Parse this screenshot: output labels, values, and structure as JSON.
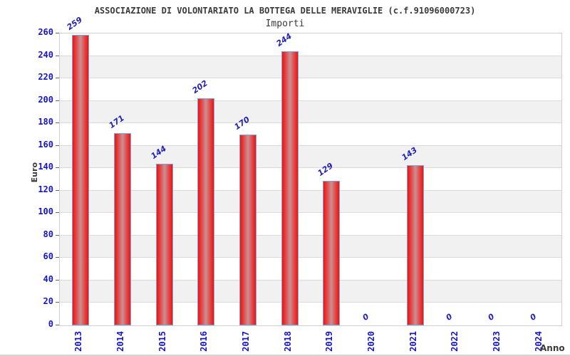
{
  "chart_data": {
    "type": "bar",
    "title": "ASSOCIAZIONE DI VOLONTARIATO LA BOTTEGA DELLE MERAVIGLIE (c.f.91096000723)",
    "subtitle": "Importi",
    "xlabel": "Anno",
    "ylabel": "Euro",
    "categories": [
      "2013",
      "2014",
      "2015",
      "2016",
      "2017",
      "2018",
      "2019",
      "2020",
      "2021",
      "2022",
      "2023",
      "2024"
    ],
    "values": [
      259,
      171,
      144,
      202,
      170,
      244,
      129,
      0,
      143,
      0,
      0,
      0
    ],
    "ylim": [
      0,
      260
    ],
    "ytick_step": 20,
    "yticks": [
      0,
      20,
      40,
      60,
      80,
      100,
      120,
      140,
      160,
      180,
      200,
      220,
      240,
      260
    ],
    "grid": "horizontal-bands",
    "legend": "none",
    "colors": {
      "title_text": "#3a3a3a",
      "axis_title_text": "#3a3a3a",
      "tick_text": "#1515c4",
      "value_label_text": "#2121b8",
      "bar_edge": "#ee1212",
      "bar_mid": "#e34545",
      "bar_center": "#cb9094",
      "bar_border": "#79a7dc",
      "band_alt": "#f1f1f1",
      "band_main": "#ffffff",
      "gridline": "#dadada",
      "plot_border": "#cfcfcf",
      "tick_mark": "#666666"
    }
  }
}
